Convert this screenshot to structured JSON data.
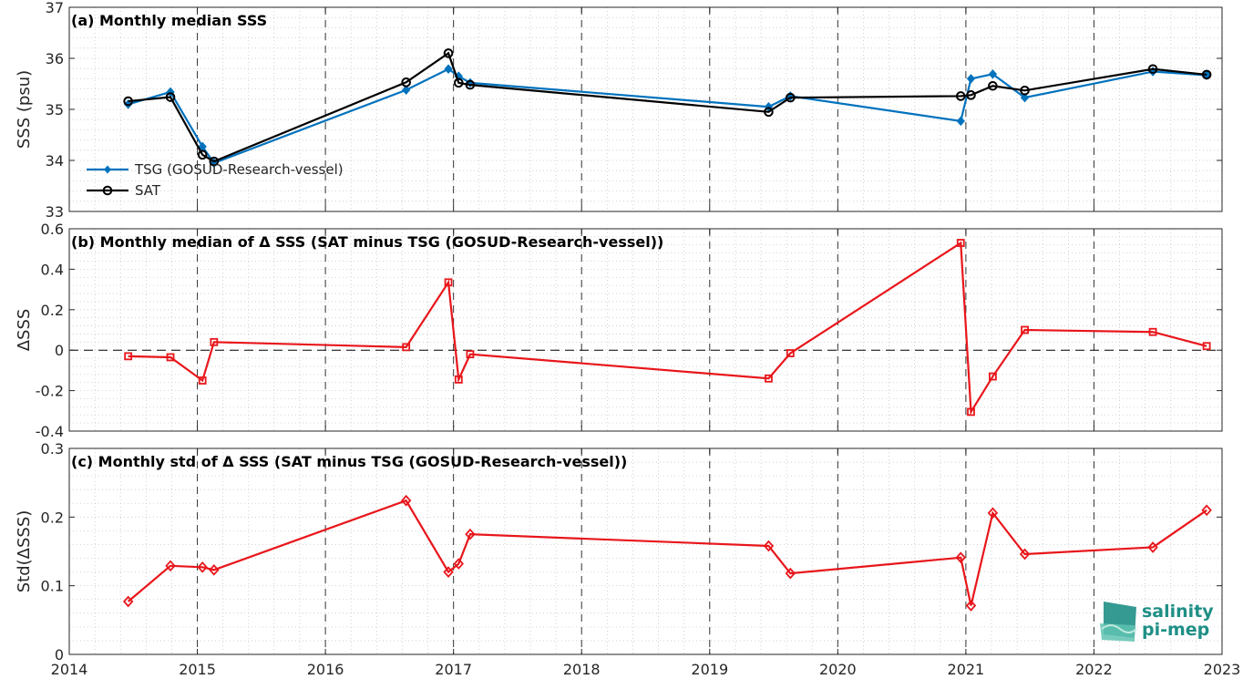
{
  "chart_data": [
    {
      "type": "line",
      "title": "(a) Monthly median SSS",
      "ylabel": "SSS (psu)",
      "xlim": [
        2014,
        2023
      ],
      "ylim": [
        33,
        37
      ],
      "yticks": [
        33,
        34,
        35,
        36,
        37
      ],
      "legend_position": "bottom-left",
      "series": [
        {
          "name": "TSG (GOSUD-Research-vessel)",
          "color": "#0072bd",
          "marker": "diamond-filled",
          "x": [
            2014.46,
            2014.79,
            2015.04,
            2015.13,
            2016.63,
            2016.96,
            2017.04,
            2017.13,
            2019.46,
            2019.63,
            2020.96,
            2021.04,
            2021.21,
            2021.46,
            2022.46,
            2022.88
          ],
          "y": [
            35.1,
            35.34,
            34.27,
            33.95,
            35.38,
            35.79,
            35.65,
            35.52,
            35.05,
            35.26,
            34.77,
            35.6,
            35.69,
            35.23,
            35.74,
            35.67
          ]
        },
        {
          "name": "SAT",
          "color": "#000000",
          "marker": "circle-open",
          "x": [
            2014.46,
            2014.79,
            2015.04,
            2015.13,
            2016.63,
            2016.96,
            2017.04,
            2017.13,
            2019.46,
            2019.63,
            2020.96,
            2021.04,
            2021.21,
            2021.46,
            2022.46,
            2022.88
          ],
          "y": [
            35.16,
            35.24,
            34.11,
            33.98,
            35.53,
            36.1,
            35.52,
            35.48,
            34.95,
            35.23,
            35.26,
            35.28,
            35.46,
            35.37,
            35.79,
            35.68
          ]
        }
      ]
    },
    {
      "type": "line",
      "title": "(b) Monthly median of Δ SSS (SAT minus TSG (GOSUD-Research-vessel))",
      "ylabel": "ΔSSS",
      "xlim": [
        2014,
        2023
      ],
      "ylim": [
        -0.4,
        0.6
      ],
      "yticks": [
        -0.4,
        -0.2,
        0,
        0.2,
        0.4,
        0.6
      ],
      "ytick_labels": [
        "-0.4",
        "-0.2",
        "0",
        "0.2",
        "0.4",
        "0.6"
      ],
      "zero_line": true,
      "series": [
        {
          "color": "#e8161b",
          "marker": "square-open",
          "x": [
            2014.46,
            2014.79,
            2015.04,
            2015.13,
            2016.63,
            2016.96,
            2017.04,
            2017.13,
            2019.46,
            2019.63,
            2020.96,
            2021.04,
            2021.21,
            2021.46,
            2022.46,
            2022.88
          ],
          "y": [
            -0.03,
            -0.035,
            -0.15,
            0.04,
            0.015,
            0.335,
            -0.145,
            -0.02,
            -0.14,
            -0.015,
            0.53,
            -0.305,
            -0.13,
            0.1,
            0.09,
            0.02
          ]
        }
      ]
    },
    {
      "type": "line",
      "title": "(c) Monthly std of Δ SSS (SAT minus TSG (GOSUD-Research-vessel))",
      "ylabel": "Std(ΔSSS)",
      "xlim": [
        2014,
        2023
      ],
      "ylim": [
        0,
        0.3
      ],
      "yticks": [
        0,
        0.1,
        0.2,
        0.3
      ],
      "ytick_labels": [
        "0",
        "0.1",
        "0.2",
        "0.3"
      ],
      "xticks": [
        2014,
        2015,
        2016,
        2017,
        2018,
        2019,
        2020,
        2021,
        2022,
        2023
      ],
      "xtick_labels": [
        "2014",
        "2015",
        "2016",
        "2017",
        "2018",
        "2019",
        "2020",
        "2021",
        "2022",
        "2023"
      ],
      "series": [
        {
          "color": "#e8161b",
          "marker": "diamond-open",
          "x": [
            2014.46,
            2014.79,
            2015.04,
            2015.13,
            2016.63,
            2016.96,
            2017.04,
            2017.13,
            2019.46,
            2019.63,
            2020.96,
            2021.04,
            2021.21,
            2021.46,
            2022.46,
            2022.88
          ],
          "y": [
            0.077,
            0.129,
            0.127,
            0.123,
            0.224,
            0.12,
            0.132,
            0.175,
            0.158,
            0.118,
            0.141,
            0.071,
            0.206,
            0.146,
            0.156,
            0.21
          ]
        }
      ]
    }
  ],
  "logo": {
    "line1": "salinity",
    "line2": "pi-mep",
    "color": "#1f8f86"
  }
}
